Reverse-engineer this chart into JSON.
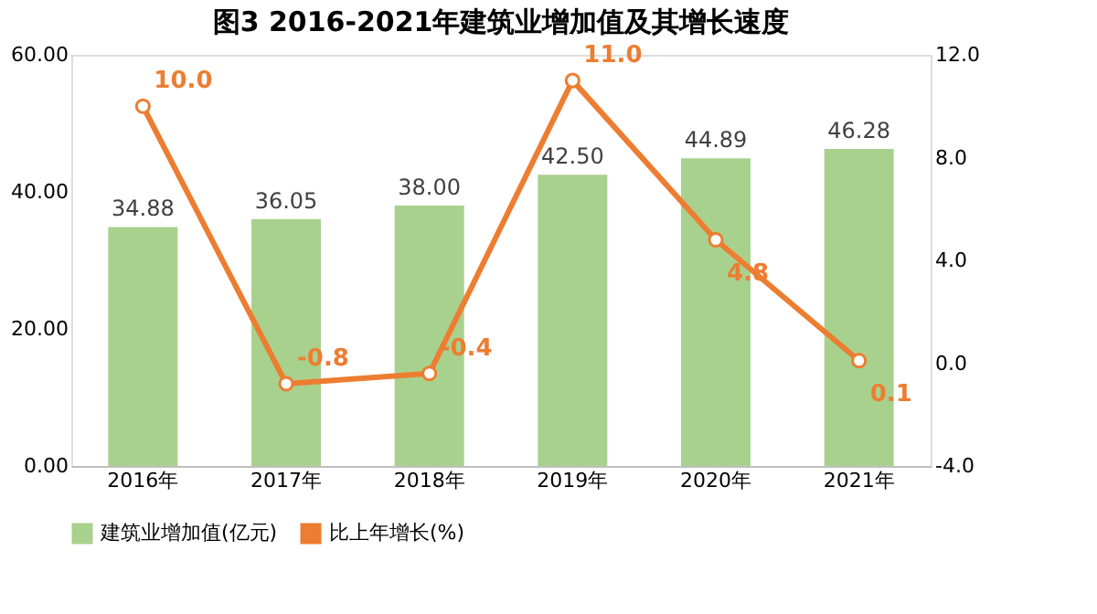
{
  "chart_data": {
    "type": "bar",
    "title": "图3 2016-2021年建筑业增加值及其增长速度",
    "categories": [
      "2016年",
      "2017年",
      "2018年",
      "2019年",
      "2020年",
      "2021年"
    ],
    "series": [
      {
        "name": "建筑业增加值(亿元)",
        "color": "#a9d18e",
        "values": [
          34.88,
          36.05,
          38.0,
          42.5,
          44.89,
          46.28
        ],
        "value_labels": [
          "34.88",
          "36.05",
          "38.00",
          "42.50",
          "44.89",
          "46.28"
        ]
      },
      {
        "name": "比上年增长(%)",
        "type": "line",
        "axis": "y2",
        "color": "#ed7d31",
        "marker": "circle",
        "values": [
          10.0,
          -0.8,
          -0.4,
          11.0,
          4.8,
          0.1
        ],
        "value_labels": [
          "10.0",
          "-0.8",
          "-0.4",
          "11.0",
          "4.8",
          "0.1"
        ]
      }
    ],
    "ylim": [
      0,
      60
    ],
    "yticks": [
      {
        "value": 0,
        "label": "0.00"
      },
      {
        "value": 20,
        "label": "20.00"
      },
      {
        "value": 40,
        "label": "40.00"
      },
      {
        "value": 60,
        "label": "60.00"
      }
    ],
    "y2lim": [
      -4,
      12
    ],
    "y2ticks": [
      {
        "value": -4,
        "label": "-4.0"
      },
      {
        "value": 0,
        "label": "0.0"
      },
      {
        "value": 4,
        "label": "4.0"
      },
      {
        "value": 8,
        "label": "8.0"
      },
      {
        "value": 12,
        "label": "12.0"
      }
    ],
    "data_labels": true,
    "legend": "bottom"
  }
}
